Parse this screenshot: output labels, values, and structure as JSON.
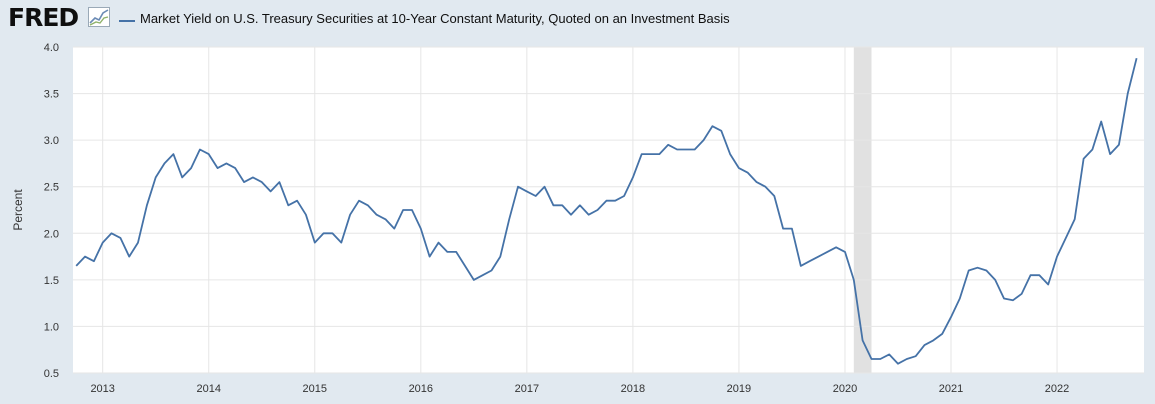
{
  "app": {
    "logo_text": "FRED"
  },
  "legend": {
    "series_label": "Market Yield on U.S. Treasury Securities at 10-Year Constant Maturity, Quoted on an Investment Basis"
  },
  "colors": {
    "series": "#4572a7",
    "background": "#e1e9f0",
    "plot": "#ffffff",
    "recession": "#e1e1e1",
    "grid": "#e6e6e6"
  },
  "chart_data": {
    "type": "line",
    "title": "",
    "xlabel": "",
    "ylabel": "Percent",
    "ylim": [
      0.5,
      4.0
    ],
    "yticks": [
      "0.5",
      "1.0",
      "1.5",
      "2.0",
      "2.5",
      "3.0",
      "3.5",
      "4.0"
    ],
    "xticks": [
      "2013",
      "2014",
      "2015",
      "2016",
      "2017",
      "2018",
      "2019",
      "2020",
      "2021",
      "2022"
    ],
    "grid": true,
    "legend_position": "top",
    "recession_shading": {
      "start": "2020-02",
      "end": "2020-04"
    },
    "series": [
      {
        "name": "Market Yield on U.S. Treasury Securities at 10-Year Constant Maturity, Quoted on an Investment Basis",
        "points": [
          [
            "2012-10",
            1.65
          ],
          [
            "2012-11",
            1.75
          ],
          [
            "2012-12",
            1.7
          ],
          [
            "2013-01",
            1.9
          ],
          [
            "2013-02",
            2.0
          ],
          [
            "2013-03",
            1.95
          ],
          [
            "2013-04",
            1.75
          ],
          [
            "2013-05",
            1.9
          ],
          [
            "2013-06",
            2.3
          ],
          [
            "2013-07",
            2.6
          ],
          [
            "2013-08",
            2.75
          ],
          [
            "2013-09",
            2.85
          ],
          [
            "2013-10",
            2.6
          ],
          [
            "2013-11",
            2.7
          ],
          [
            "2013-12",
            2.9
          ],
          [
            "2014-01",
            2.85
          ],
          [
            "2014-02",
            2.7
          ],
          [
            "2014-03",
            2.75
          ],
          [
            "2014-04",
            2.7
          ],
          [
            "2014-05",
            2.55
          ],
          [
            "2014-06",
            2.6
          ],
          [
            "2014-07",
            2.55
          ],
          [
            "2014-08",
            2.45
          ],
          [
            "2014-09",
            2.55
          ],
          [
            "2014-10",
            2.3
          ],
          [
            "2014-11",
            2.35
          ],
          [
            "2014-12",
            2.2
          ],
          [
            "2015-01",
            1.9
          ],
          [
            "2015-02",
            2.0
          ],
          [
            "2015-03",
            2.0
          ],
          [
            "2015-04",
            1.9
          ],
          [
            "2015-05",
            2.2
          ],
          [
            "2015-06",
            2.35
          ],
          [
            "2015-07",
            2.3
          ],
          [
            "2015-08",
            2.2
          ],
          [
            "2015-09",
            2.15
          ],
          [
            "2015-10",
            2.05
          ],
          [
            "2015-11",
            2.25
          ],
          [
            "2015-12",
            2.25
          ],
          [
            "2016-01",
            2.05
          ],
          [
            "2016-02",
            1.75
          ],
          [
            "2016-03",
            1.9
          ],
          [
            "2016-04",
            1.8
          ],
          [
            "2016-05",
            1.8
          ],
          [
            "2016-06",
            1.65
          ],
          [
            "2016-07",
            1.5
          ],
          [
            "2016-08",
            1.55
          ],
          [
            "2016-09",
            1.6
          ],
          [
            "2016-10",
            1.75
          ],
          [
            "2016-11",
            2.15
          ],
          [
            "2016-12",
            2.5
          ],
          [
            "2017-01",
            2.45
          ],
          [
            "2017-02",
            2.4
          ],
          [
            "2017-03",
            2.5
          ],
          [
            "2017-04",
            2.3
          ],
          [
            "2017-05",
            2.3
          ],
          [
            "2017-06",
            2.2
          ],
          [
            "2017-07",
            2.3
          ],
          [
            "2017-08",
            2.2
          ],
          [
            "2017-09",
            2.25
          ],
          [
            "2017-10",
            2.35
          ],
          [
            "2017-11",
            2.35
          ],
          [
            "2017-12",
            2.4
          ],
          [
            "2018-01",
            2.6
          ],
          [
            "2018-02",
            2.85
          ],
          [
            "2018-03",
            2.85
          ],
          [
            "2018-04",
            2.85
          ],
          [
            "2018-05",
            2.95
          ],
          [
            "2018-06",
            2.9
          ],
          [
            "2018-07",
            2.9
          ],
          [
            "2018-08",
            2.9
          ],
          [
            "2018-09",
            3.0
          ],
          [
            "2018-10",
            3.15
          ],
          [
            "2018-11",
            3.1
          ],
          [
            "2018-12",
            2.85
          ],
          [
            "2019-01",
            2.7
          ],
          [
            "2019-02",
            2.65
          ],
          [
            "2019-03",
            2.55
          ],
          [
            "2019-04",
            2.5
          ],
          [
            "2019-05",
            2.4
          ],
          [
            "2019-06",
            2.05
          ],
          [
            "2019-07",
            2.05
          ],
          [
            "2019-08",
            1.65
          ],
          [
            "2019-09",
            1.7
          ],
          [
            "2019-10",
            1.75
          ],
          [
            "2019-11",
            1.8
          ],
          [
            "2019-12",
            1.85
          ],
          [
            "2020-01",
            1.8
          ],
          [
            "2020-02",
            1.5
          ],
          [
            "2020-03",
            0.85
          ],
          [
            "2020-04",
            0.65
          ],
          [
            "2020-05",
            0.65
          ],
          [
            "2020-06",
            0.7
          ],
          [
            "2020-07",
            0.6
          ],
          [
            "2020-08",
            0.65
          ],
          [
            "2020-09",
            0.68
          ],
          [
            "2020-10",
            0.8
          ],
          [
            "2020-11",
            0.85
          ],
          [
            "2020-12",
            0.92
          ],
          [
            "2021-01",
            1.1
          ],
          [
            "2021-02",
            1.3
          ],
          [
            "2021-03",
            1.6
          ],
          [
            "2021-04",
            1.63
          ],
          [
            "2021-05",
            1.6
          ],
          [
            "2021-06",
            1.5
          ],
          [
            "2021-07",
            1.3
          ],
          [
            "2021-08",
            1.28
          ],
          [
            "2021-09",
            1.35
          ],
          [
            "2021-10",
            1.55
          ],
          [
            "2021-11",
            1.55
          ],
          [
            "2021-12",
            1.45
          ],
          [
            "2022-01",
            1.75
          ],
          [
            "2022-02",
            1.95
          ],
          [
            "2022-03",
            2.15
          ],
          [
            "2022-04",
            2.8
          ],
          [
            "2022-05",
            2.9
          ],
          [
            "2022-06",
            3.2
          ],
          [
            "2022-07",
            2.85
          ],
          [
            "2022-08",
            2.95
          ],
          [
            "2022-09",
            3.5
          ],
          [
            "2022-10",
            3.88
          ]
        ]
      }
    ]
  }
}
